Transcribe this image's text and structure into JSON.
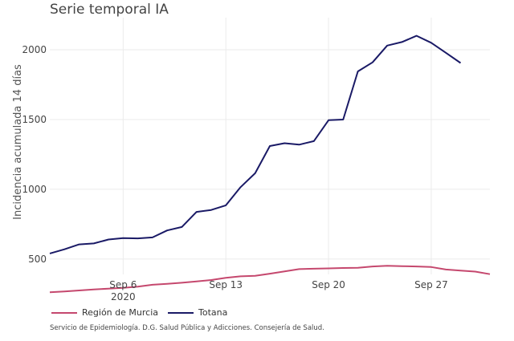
{
  "chart_data": {
    "type": "line",
    "title": "Serie temporal IA",
    "xlabel": "",
    "ylabel": "Incidencia acumulada 14 días",
    "x": [
      "Sep 1",
      "Sep 2",
      "Sep 3",
      "Sep 4",
      "Sep 5",
      "Sep 6",
      "Sep 7",
      "Sep 8",
      "Sep 9",
      "Sep 10",
      "Sep 11",
      "Sep 12",
      "Sep 13",
      "Sep 14",
      "Sep 15",
      "Sep 16",
      "Sep 17",
      "Sep 18",
      "Sep 19",
      "Sep 20",
      "Sep 21",
      "Sep 22",
      "Sep 23",
      "Sep 24",
      "Sep 25",
      "Sep 26",
      "Sep 27",
      "Sep 28",
      "Sep 29",
      "Sep 30",
      "Oct 1"
    ],
    "x_index_range": [
      0,
      30
    ],
    "ylim": [
      390,
      2230
    ],
    "yticks": [
      500,
      1000,
      1500,
      2000
    ],
    "ytick_labels": [
      "500",
      "1000",
      "1500",
      "2000"
    ],
    "xticks": [
      {
        "index": 5,
        "label": "Sep 6",
        "sublabel": "2020"
      },
      {
        "index": 12,
        "label": "Sep 13",
        "sublabel": ""
      },
      {
        "index": 19,
        "label": "Sep 20",
        "sublabel": ""
      },
      {
        "index": 26,
        "label": "Sep 27",
        "sublabel": ""
      }
    ],
    "grid": true,
    "legend_position": "bottom-left",
    "series": [
      {
        "name": "Región de Murcia",
        "color": "#c5486e",
        "values": [
          262,
          268,
          275,
          282,
          288,
          294,
          302,
          316,
          322,
          330,
          340,
          350,
          365,
          376,
          380,
          395,
          412,
          428,
          431,
          433,
          436,
          438,
          447,
          452,
          449,
          447,
          443,
          425,
          417,
          410,
          392
        ]
      },
      {
        "name": "Totana",
        "color": "#1a1a66",
        "values": [
          540,
          570,
          605,
          612,
          640,
          650,
          648,
          655,
          705,
          730,
          838,
          852,
          885,
          1015,
          1115,
          1310,
          1330,
          1320,
          1345,
          1495,
          1500,
          1845,
          1910,
          2030,
          2055,
          2100,
          2050,
          1978,
          1905,
          null,
          null
        ]
      }
    ]
  },
  "caption": "Servicio de Epidemiología. D.G. Salud Pública y Adicciones. Consejería de Salud."
}
